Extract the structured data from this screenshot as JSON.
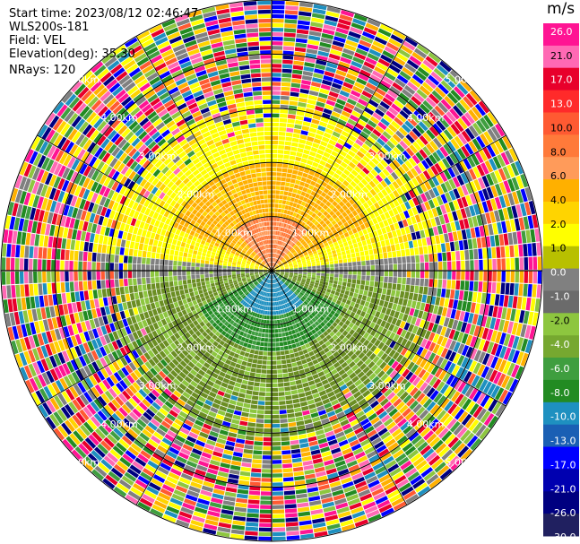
{
  "header": {
    "start_time": "Start time: 2023/08/12 02:46:47",
    "instrument": "WLS200s-181",
    "field": "Field: VEL",
    "elevation": "Elevation(deg): 35.30",
    "nrays": "NRays: 120"
  },
  "colorbar": {
    "unit": "m/s",
    "ticks": [
      "26.0",
      "21.0",
      "17.0",
      "13.0",
      "10.0",
      "8.0",
      "6.0",
      "4.0",
      "2.0",
      "1.0",
      "0.0",
      "-1.0",
      "-2.0",
      "-4.0",
      "-6.0",
      "-8.0",
      "-10.0",
      "-13.0",
      "-17.0",
      "-21.0",
      "-26.0",
      "-30.0"
    ],
    "colors": [
      "#ff1493",
      "#ff69b4",
      "#e8002b",
      "#ff2a2a",
      "#ff5a32",
      "#ff7a3a",
      "#ff9b5a",
      "#ffb000",
      "#ffd400",
      "#ffff00",
      "#b8c000",
      "#808080",
      "#6b6b6b",
      "#8dc63f",
      "#76a830",
      "#3f9e3f",
      "#228b22",
      "#1e90c0",
      "#1a5fb4",
      "#0000ff",
      "#0000b0",
      "#000080",
      "#202060"
    ]
  },
  "chart_data": {
    "type": "heatmap",
    "subtype": "PPI radial velocity",
    "field": "VEL",
    "units": "m/s",
    "n_rays": 120,
    "range_rings_km": [
      1.0,
      2.0,
      3.0,
      4.0,
      5.0
    ],
    "range_ring_labels": [
      "1.00km",
      "2.00km",
      "3.00km",
      "4.00km",
      "5.00km"
    ],
    "max_range_km": 5.0,
    "color_scale": [
      -30,
      26
    ],
    "pattern": "positive velocities (toward +) in northern half, negative in southern half, noisy beyond ~3km"
  }
}
